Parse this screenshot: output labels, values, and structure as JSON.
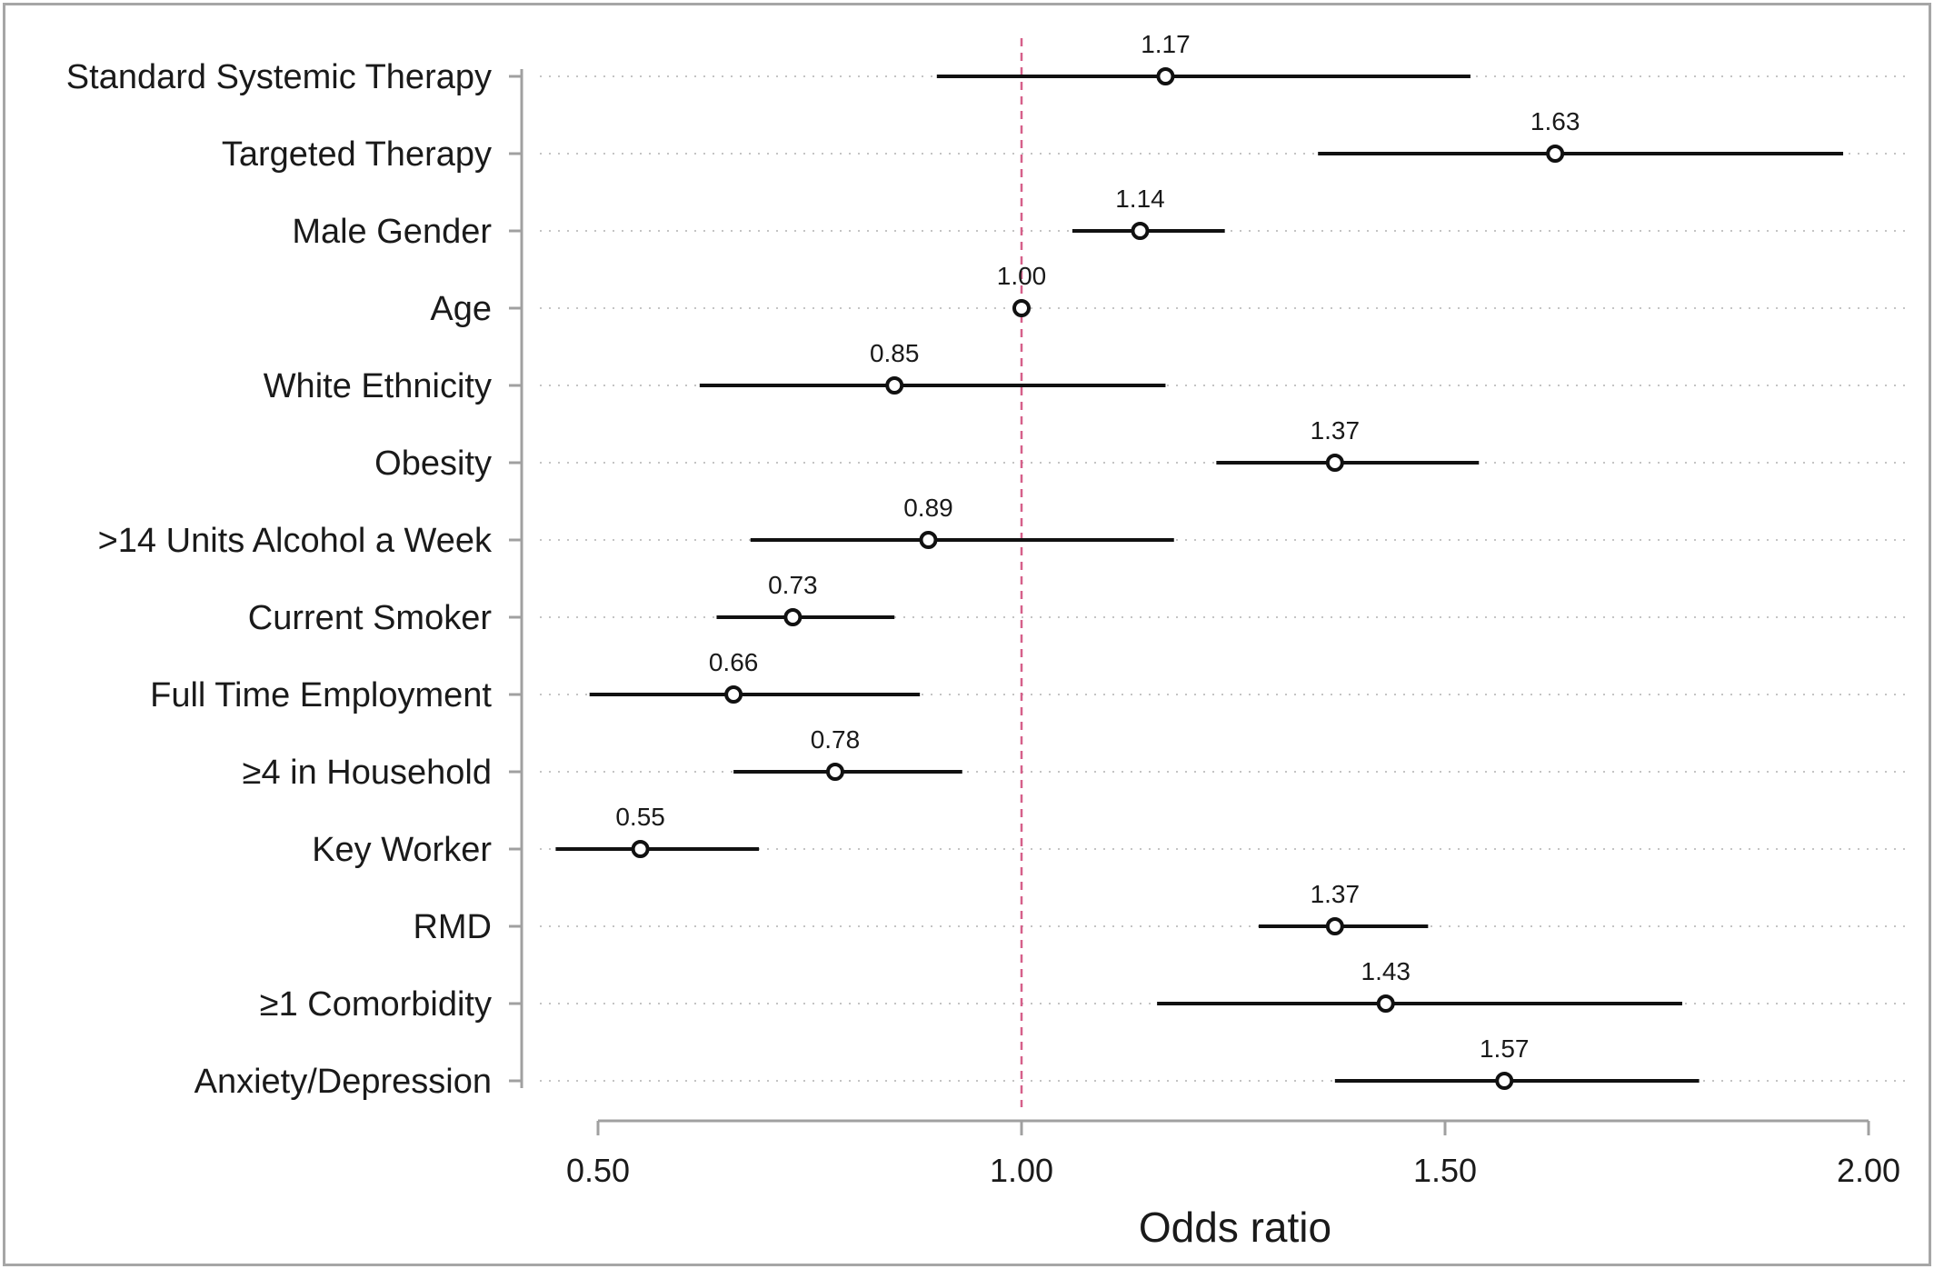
{
  "chart_data": {
    "type": "forest",
    "xlabel": "Odds ratio",
    "xlim": [
      0.5,
      2.0
    ],
    "xticks": [
      0.5,
      1.0,
      1.5,
      2.0
    ],
    "xtick_labels": [
      "0.50",
      "1.00",
      "1.50",
      "2.00"
    ],
    "reference_line": 1.0,
    "reference_color": "#d6608a",
    "grid": "dotted horizontal",
    "rows": [
      {
        "label": "Standard Systemic Therapy",
        "or": 1.17,
        "or_label": "1.17",
        "lo": 0.9,
        "hi": 1.53
      },
      {
        "label": "Targeted Therapy",
        "or": 1.63,
        "or_label": "1.63",
        "lo": 1.35,
        "hi": 1.97
      },
      {
        "label": "Male Gender",
        "or": 1.14,
        "or_label": "1.14",
        "lo": 1.06,
        "hi": 1.24
      },
      {
        "label": "Age",
        "or": 1.0,
        "or_label": "1.00",
        "lo": 0.995,
        "hi": 1.005
      },
      {
        "label": "White Ethnicity",
        "or": 0.85,
        "or_label": "0.85",
        "lo": 0.62,
        "hi": 1.17
      },
      {
        "label": "Obesity",
        "or": 1.37,
        "or_label": "1.37",
        "lo": 1.23,
        "hi": 1.54
      },
      {
        "label": ">14 Units Alcohol a Week",
        "or": 0.89,
        "or_label": "0.89",
        "lo": 0.68,
        "hi": 1.18
      },
      {
        "label": "Current Smoker",
        "or": 0.73,
        "or_label": "0.73",
        "lo": 0.64,
        "hi": 0.85
      },
      {
        "label": "Full Time Employment",
        "or": 0.66,
        "or_label": "0.66",
        "lo": 0.49,
        "hi": 0.88
      },
      {
        "label": "≥4 in Household",
        "or": 0.78,
        "or_label": "0.78",
        "lo": 0.66,
        "hi": 0.93
      },
      {
        "label": "Key Worker",
        "or": 0.55,
        "or_label": "0.55",
        "lo": 0.45,
        "hi": 0.69
      },
      {
        "label": "RMD",
        "or": 1.37,
        "or_label": "1.37",
        "lo": 1.28,
        "hi": 1.48
      },
      {
        "label": "≥1 Comorbidity",
        "or": 1.43,
        "or_label": "1.43",
        "lo": 1.16,
        "hi": 1.78
      },
      {
        "label": "Anxiety/Depression",
        "or": 1.57,
        "or_label": "1.57",
        "lo": 1.37,
        "hi": 1.8
      }
    ]
  }
}
